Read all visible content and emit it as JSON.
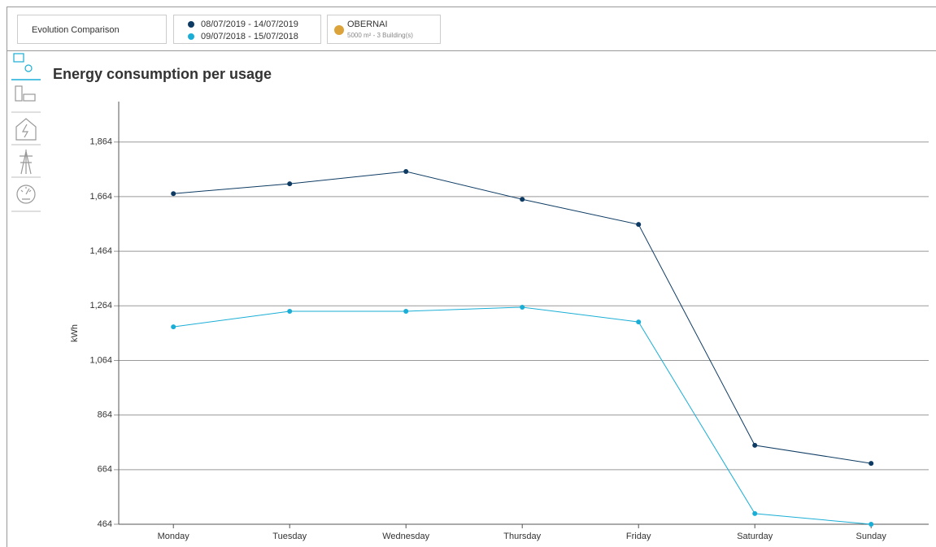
{
  "header": {
    "tab": "Evolution Comparison",
    "site": {
      "name": "OBERNAI",
      "details": "5000 m²  -  3 Building(s)"
    }
  },
  "chart_data": {
    "type": "line",
    "title": "Energy consumption per usage",
    "y_label": "kWh",
    "categories": [
      "Monday",
      "Tuesday",
      "Wednesday",
      "Thursday",
      "Friday",
      "Saturday",
      "Sunday"
    ],
    "series": [
      {
        "name": "08/07/2019 - 14/07/2019",
        "color": "#0d3b63",
        "values": [
          1675,
          1711,
          1756,
          1654,
          1562,
          753,
          687
        ]
      },
      {
        "name": "09/07/2018 - 15/07/2018",
        "color": "#1aaed6",
        "values": [
          1187,
          1244,
          1244,
          1259,
          1205,
          503,
          464
        ]
      }
    ],
    "ylim": [
      464,
      2012
    ],
    "yticks": [
      464,
      664,
      864,
      {
        "value": 1064,
        "label": "1,064"
      },
      {
        "value": 1264,
        "label": "1,264"
      },
      {
        "value": 1464,
        "label": "1,464"
      },
      {
        "value": 1664,
        "label": "1,664"
      },
      {
        "value": 1864,
        "label": "1,864"
      }
    ],
    "grid": true
  }
}
